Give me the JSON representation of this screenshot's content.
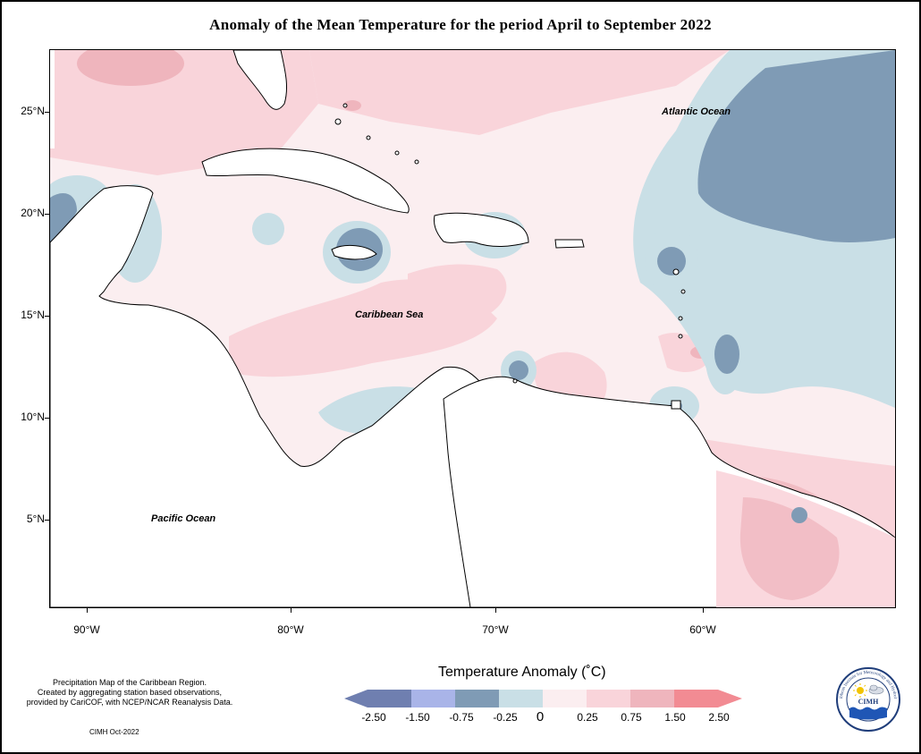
{
  "title": "Anomaly of the Mean Temperature for the period April to September 2022",
  "map": {
    "labels": {
      "atlantic": "Atlantic Ocean",
      "caribbean": "Caribbean Sea",
      "pacific": "Pacific Ocean"
    },
    "lat_ticks": [
      "25°N",
      "20°N",
      "15°N",
      "10°N",
      "5°N"
    ],
    "lon_ticks": [
      "90°W",
      "80°W",
      "70°W",
      "60°W"
    ],
    "palette": {
      "land": "#ffffff",
      "coast": "#000000",
      "anom_minus_2_5": "#6f7fb0",
      "anom_minus_1_5": "#a9b4e8",
      "anom_minus_0_75": "#7f9bb5",
      "anom_minus_0_25": "#c9dfe6",
      "anom_0": "#fbeef0",
      "anom_0_25": "#f9d4da",
      "anom_0_75": "#efb5bd",
      "anom_1_5": "#f28b93"
    }
  },
  "legend": {
    "title": "Temperature Anomaly (˚C)",
    "bins": [
      {
        "color": "#6f7fb0"
      },
      {
        "color": "#a9b4e8"
      },
      {
        "color": "#7f9bb5"
      },
      {
        "color": "#c9dfe6"
      },
      {
        "color": "#fbeef0"
      },
      {
        "color": "#f9d4da"
      },
      {
        "color": "#efb5bd"
      },
      {
        "color": "#f28b93"
      }
    ],
    "labels": [
      "-2.50",
      "-1.50",
      "-0.75",
      "-0.25",
      "0",
      "0.25",
      "0.75",
      "1.50",
      "2.50"
    ]
  },
  "footnote": {
    "line1": "Precipitation Map of the Caribbean Region.",
    "line2": "Created by aggregating station based observations,",
    "line3": "provided by CariCOF, with NCEP/NCAR Reanalysis Data."
  },
  "credit": "CIMH Oct-2022",
  "logo": {
    "text": "CIMH",
    "ring_text": "Caribbean Institute for Meteorology and Hydrology",
    "icons": [
      "sun-icon",
      "cloud-icon",
      "waves-icon"
    ]
  }
}
